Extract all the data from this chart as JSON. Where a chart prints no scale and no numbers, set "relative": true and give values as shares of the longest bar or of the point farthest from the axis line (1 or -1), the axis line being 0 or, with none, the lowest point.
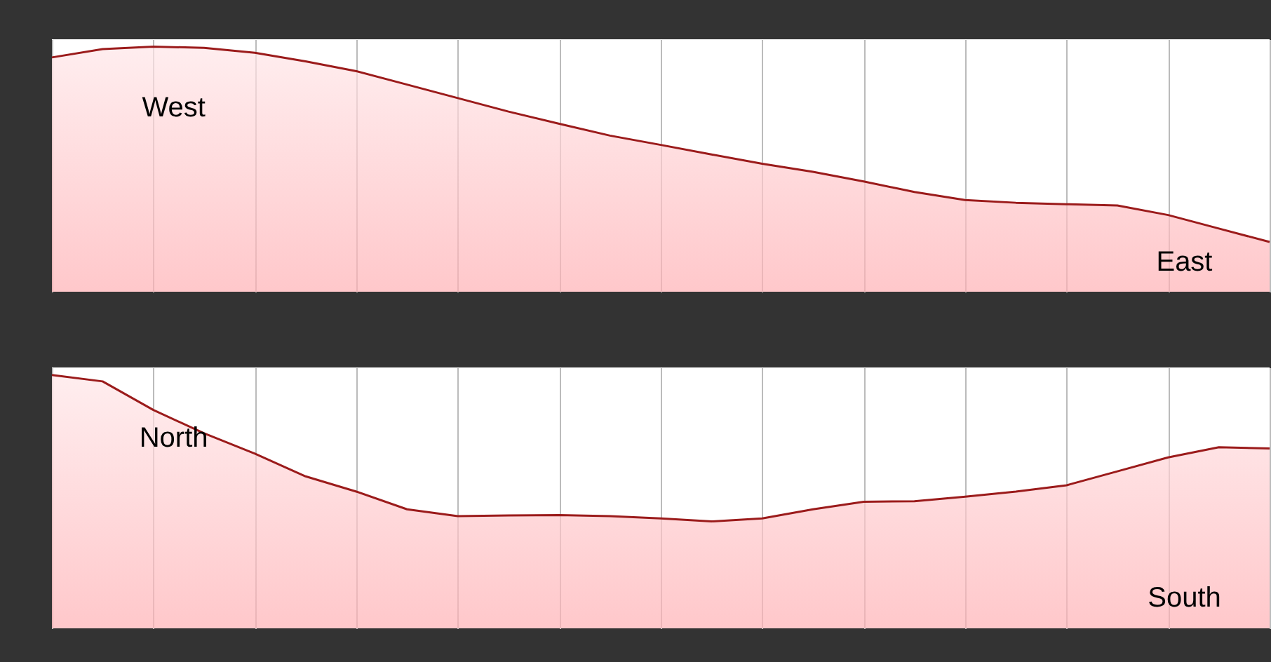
{
  "chart_data": [
    {
      "type": "area",
      "relative": true,
      "tick_labels": false,
      "grid": true,
      "categories": [
        null,
        null,
        null,
        null,
        null,
        null,
        null,
        null,
        null,
        null,
        null,
        null,
        null,
        null,
        null,
        null,
        null,
        null,
        null,
        null,
        null,
        null,
        null,
        null,
        null
      ],
      "series": [
        {
          "color": "#9b1b1b",
          "values": [
            0.956,
            0.99,
            1,
            0.995,
            0.975,
            0.94,
            0.9,
            0.845,
            0.79,
            0.735,
            0.685,
            0.637,
            0.599,
            0.56,
            0.522,
            0.489,
            0.45,
            0.407,
            0.374,
            0.363,
            0.357,
            0.352,
            0.313,
            0.258,
            0.203
          ]
        }
      ],
      "annotations": [
        "West",
        "East"
      ]
    },
    {
      "type": "area",
      "relative": true,
      "tick_labels": false,
      "grid": true,
      "categories": [
        null,
        null,
        null,
        null,
        null,
        null,
        null,
        null,
        null,
        null,
        null,
        null,
        null,
        null,
        null,
        null,
        null,
        null,
        null,
        null,
        null,
        null,
        null,
        null,
        null
      ],
      "series": [
        {
          "color": "#9b1b1b",
          "values": [
            1,
            0.975,
            0.862,
            0.77,
            0.69,
            0.6,
            0.54,
            0.47,
            0.443,
            0.446,
            0.447,
            0.443,
            0.434,
            0.422,
            0.434,
            0.47,
            0.5,
            0.502,
            0.52,
            0.54,
            0.565,
            0.62,
            0.675,
            0.715,
            0.71
          ]
        }
      ],
      "annotations": [
        "North",
        "South"
      ]
    }
  ]
}
